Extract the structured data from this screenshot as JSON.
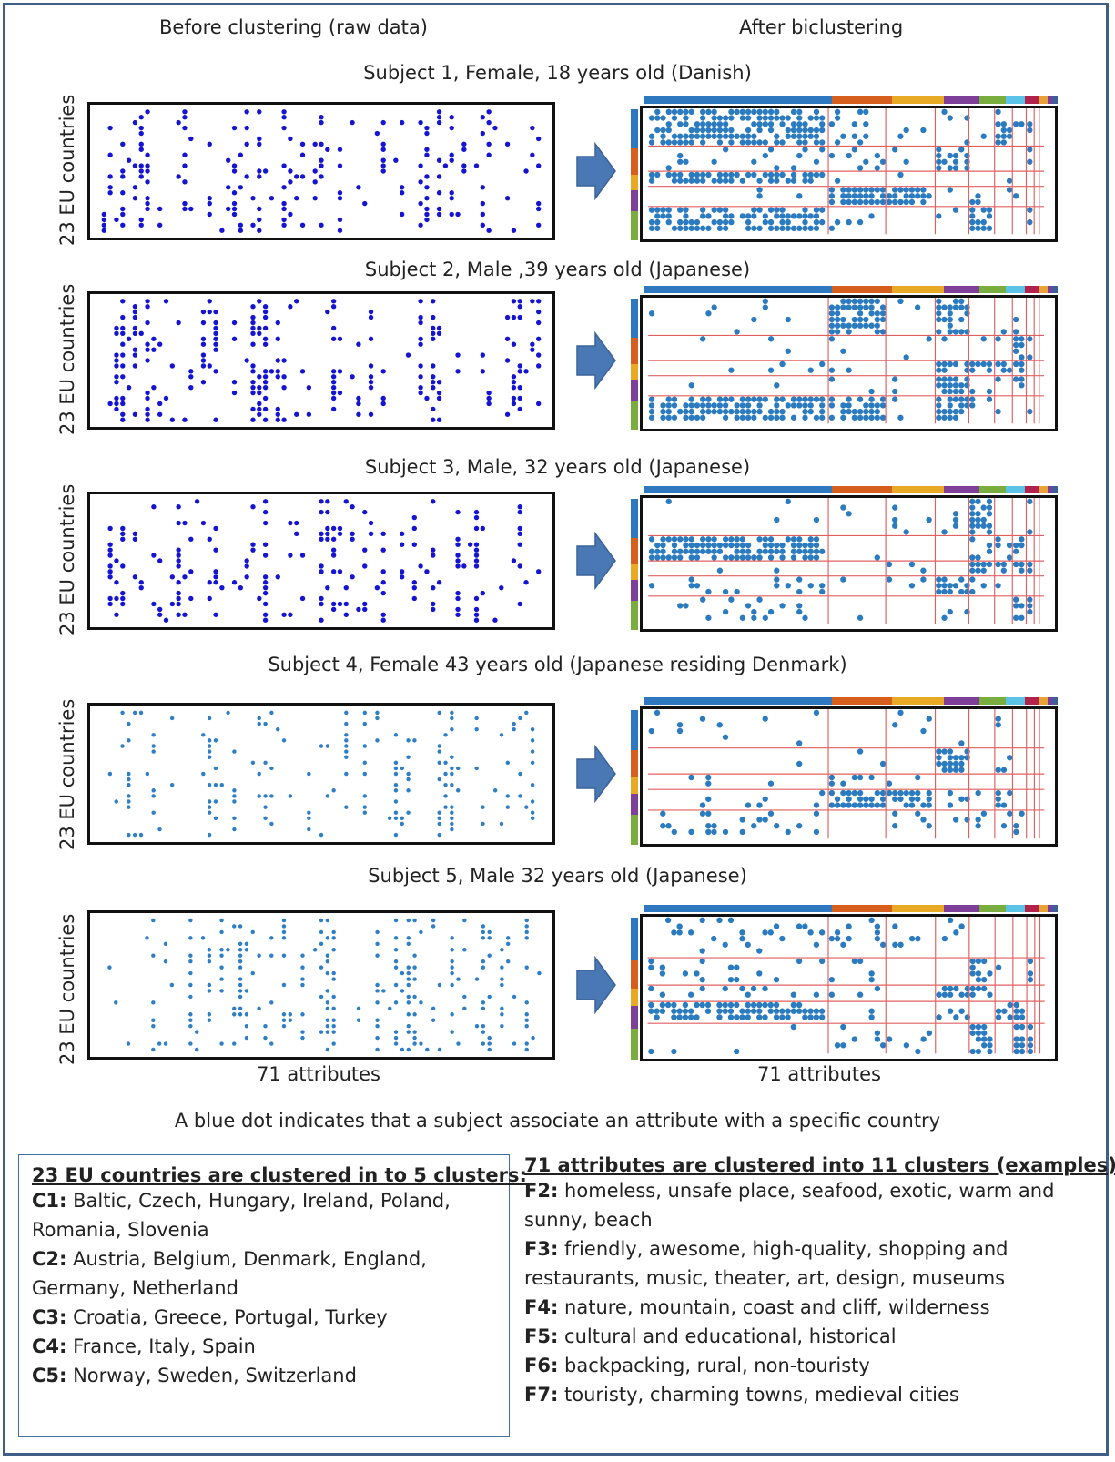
{
  "headers": {
    "left": "Before clustering (raw data)",
    "right": "After biclustering"
  },
  "ylabel": "23 EU countries",
  "xlabel": "71 attributes",
  "colors": {
    "raw_dark": "#1414d2",
    "raw_light": "#2f7fc6",
    "biclust_dot": "#2b7bc0",
    "grid_line": "#e06060",
    "arrow": "#4a78b5",
    "bar_colors": [
      "#2e78bf",
      "#d65f1e",
      "#e8a924",
      "#7d3f98",
      "#79ad3d",
      "#5cc3e8",
      "#b1234a",
      "#e6a235",
      "#7a3d99",
      "#3c5e99"
    ]
  },
  "subjects": [
    {
      "title": "Subject 1,  Female, 18 years old (Danish)",
      "raw_style": "dark"
    },
    {
      "title": "Subject 2, Male ,39 years old (Japanese)",
      "raw_style": "dark"
    },
    {
      "title": "Subject 3, Male, 32 years old (Japanese)",
      "raw_style": "dark"
    },
    {
      "title": "Subject 4, Female 43 years old (Japanese residing Denmark)",
      "raw_style": "light"
    },
    {
      "title": "Subject 5, Male 32 years old (Japanese)",
      "raw_style": "light"
    }
  ],
  "note": "A blue dot indicates that a subject associate an attribute with a specific country",
  "countries": {
    "title": "23 EU countries are clustered in to 5 clusters:",
    "items": [
      {
        "key": "C1:",
        "text": " Baltic, Czech, Hungary, Ireland, Poland, Romania, Slovenia"
      },
      {
        "key": "C2:",
        "text": " Austria, Belgium, Denmark, England, Germany, Netherland"
      },
      {
        "key": "C3:",
        "text": " Croatia, Greece, Portugal, Turkey"
      },
      {
        "key": "C4:",
        "text": " France, Italy, Spain"
      },
      {
        "key": "C5:",
        "text": " Norway, Sweden, Switzerland"
      }
    ]
  },
  "attributes": {
    "title": "71 attributes are clustered into 11 clusters (examples):",
    "items": [
      {
        "key": "F2:",
        "text": "  homeless, unsafe place, seafood, exotic, warm and sunny, beach"
      },
      {
        "key": "F3:",
        "text": " friendly, awesome, high-quality, shopping and restaurants, music, theater, art, design, museums"
      },
      {
        "key": "F4:",
        "text": " nature, mountain, coast and cliff, wilderness"
      },
      {
        "key": "F5:",
        "text": " cultural and educational, historical"
      },
      {
        "key": "F6:",
        "text": " backpacking, rural, non-touristy"
      },
      {
        "key": "F7:",
        "text": " touristy, charming towns, medieval cities"
      }
    ]
  }
}
